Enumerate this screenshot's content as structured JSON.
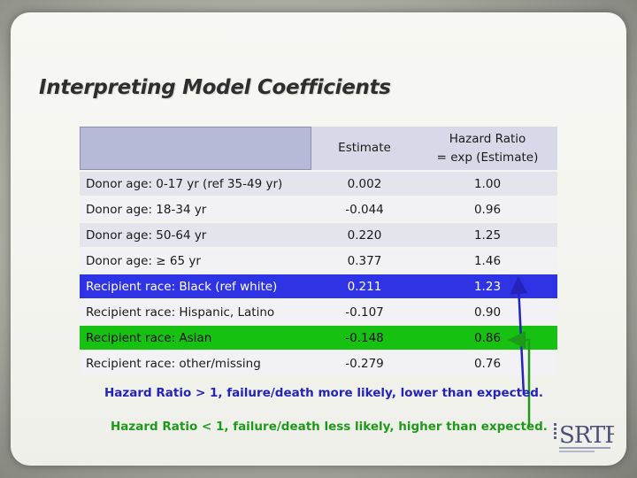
{
  "slide": {
    "title": "Interpreting Model Coefficients"
  },
  "table": {
    "headers": [
      "",
      "Estimate",
      "Hazard Ratio",
      "= exp (Estimate)"
    ],
    "rows": [
      {
        "label": "Donor age: 0-17 yr (ref 35-49 yr)",
        "estimate": "0.002",
        "hr": "1.00",
        "highlight": "none"
      },
      {
        "label": "Donor age: 18-34 yr",
        "estimate": "-0.044",
        "hr": "0.96",
        "highlight": "none"
      },
      {
        "label": "Donor age: 50-64 yr",
        "estimate": "0.220",
        "hr": "1.25",
        "highlight": "none"
      },
      {
        "label": "Donor age: ≥ 65 yr",
        "estimate": "0.377",
        "hr": "1.46",
        "highlight": "none"
      },
      {
        "label": "Recipient race: Black (ref white)",
        "estimate": "0.211",
        "hr": "1.23",
        "highlight": "blue"
      },
      {
        "label": "Recipient race: Hispanic, Latino",
        "estimate": "-0.107",
        "hr": "0.90",
        "highlight": "none"
      },
      {
        "label": "Recipient race: Asian",
        "estimate": "-0.148",
        "hr": "0.86",
        "highlight": "green"
      },
      {
        "label": "Recipient race: other/missing",
        "estimate": "-0.279",
        "hr": "0.76",
        "highlight": "none"
      }
    ]
  },
  "notes": {
    "greater": "Hazard Ratio > 1, failure/death more likely, lower than expected.",
    "less": "Hazard Ratio < 1, failure/death less likely, higher than expected."
  },
  "logo": {
    "text": "SRTR",
    "icon": "srtr-logo"
  },
  "colors": {
    "blue_highlight": "#2f33e6",
    "green_highlight": "#17c112",
    "blue_note": "#2424b8",
    "green_note": "#1e9a1a"
  }
}
